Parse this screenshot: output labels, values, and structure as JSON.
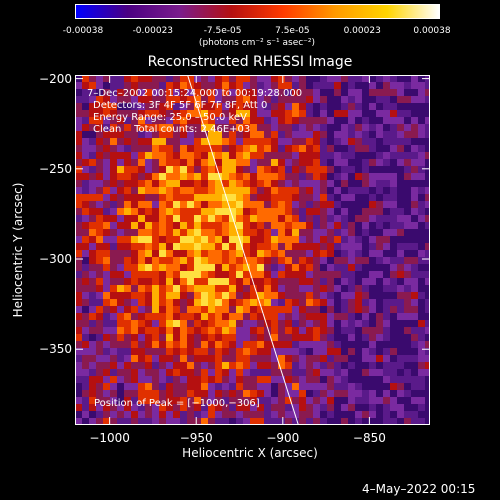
{
  "colorbar": {
    "ticks": [
      "-0.00038",
      "-0.00023",
      "-7.5e-05",
      "7.5e-05",
      "0.00023",
      "0.00038"
    ],
    "unit_label": "(photons cm⁻² s⁻¹ asec⁻²)",
    "colors": [
      "#0000ff",
      "#4b0082",
      "#7a1c8c",
      "#b51010",
      "#ff3b00",
      "#ff9a00",
      "#ffd400",
      "#ffffff"
    ]
  },
  "chart_data": {
    "type": "heatmap",
    "title": "Reconstructed RHESSI Image",
    "xlabel": "Heliocentric X (arcsec)",
    "ylabel": "Heliocentric Y (arcsec)",
    "xlim": [
      -1020,
      -815
    ],
    "ylim": [
      -392,
      -198
    ],
    "xticks": [
      -1000,
      -950,
      -900,
      -850
    ],
    "yticks": [
      -200,
      -250,
      -300,
      -350
    ],
    "xtick_labels": [
      "−1000",
      "−950",
      "−900",
      "−850"
    ],
    "ytick_labels": [
      "−200",
      "−250",
      "−300",
      "−350"
    ],
    "info_lines": [
      "7–Dec–2002 00:15:24.000 to 00:19:28.000",
      "Detectors: 3F 4F 5F 6F 7F 8F, Att 0",
      "Energy Range: 25.0 – 50.0 keV",
      "Clean    Total counts: 2.46E+03"
    ],
    "peak_label": "Position of Peak = [−1000,−306]",
    "limb_line": [
      [
        -955,
        -198
      ],
      [
        -891,
        -392
      ]
    ],
    "grid": false
  },
  "footer": {
    "timestamp": "4–May–2022 00:15"
  }
}
